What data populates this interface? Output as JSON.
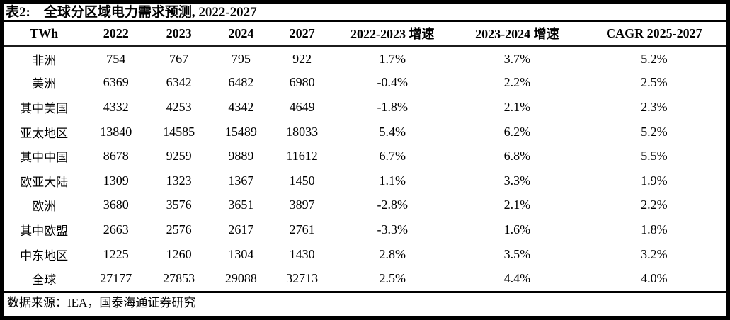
{
  "table": {
    "title": "表2:　全球分区域电力需求预测, 2022-2027",
    "unit_label": "TWh",
    "columns": [
      "TWh",
      "2022",
      "2023",
      "2024",
      "2027",
      "2022-2023 增速",
      "2023-2024 增速",
      "CAGR 2025-2027"
    ],
    "rows": [
      [
        "非洲",
        "754",
        "767",
        "795",
        "922",
        "1.7%",
        "3.7%",
        "5.2%"
      ],
      [
        "美洲",
        "6369",
        "6342",
        "6482",
        "6980",
        "-0.4%",
        "2.2%",
        "2.5%"
      ],
      [
        "其中美国",
        "4332",
        "4253",
        "4342",
        "4649",
        "-1.8%",
        "2.1%",
        "2.3%"
      ],
      [
        "亚太地区",
        "13840",
        "14585",
        "15489",
        "18033",
        "5.4%",
        "6.2%",
        "5.2%"
      ],
      [
        "其中中国",
        "8678",
        "9259",
        "9889",
        "11612",
        "6.7%",
        "6.8%",
        "5.5%"
      ],
      [
        "欧亚大陆",
        "1309",
        "1323",
        "1367",
        "1450",
        "1.1%",
        "3.3%",
        "1.9%"
      ],
      [
        "欧洲",
        "3680",
        "3576",
        "3651",
        "3897",
        "-2.8%",
        "2.1%",
        "2.2%"
      ],
      [
        "其中欧盟",
        "2663",
        "2576",
        "2617",
        "2761",
        "-3.3%",
        "1.6%",
        "1.8%"
      ],
      [
        "中东地区",
        "1225",
        "1260",
        "1304",
        "1430",
        "2.8%",
        "3.5%",
        "3.2%"
      ],
      [
        "全球",
        "27177",
        "27853",
        "29088",
        "32713",
        "2.5%",
        "4.4%",
        "4.0%"
      ]
    ],
    "source": "数据来源：IEA，国泰海通证券研究"
  },
  "colors": {
    "border": "#000000",
    "background": "#ffffff",
    "text": "#000000"
  }
}
